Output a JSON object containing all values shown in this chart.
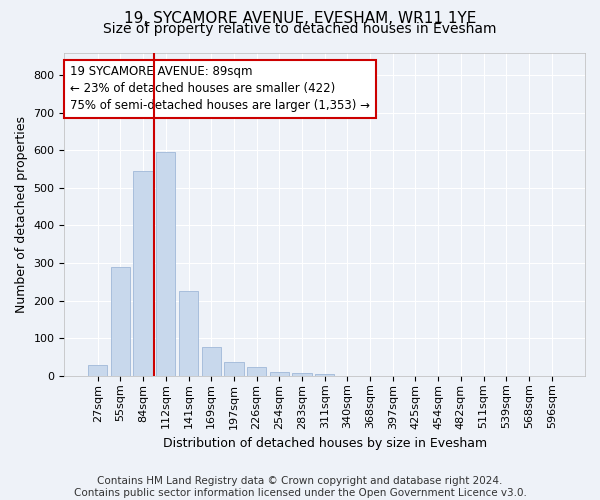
{
  "title_line1": "19, SYCAMORE AVENUE, EVESHAM, WR11 1YE",
  "title_line2": "Size of property relative to detached houses in Evesham",
  "xlabel": "Distribution of detached houses by size in Evesham",
  "ylabel": "Number of detached properties",
  "bar_color": "#c8d8ec",
  "bar_edge_color": "#a0b8d8",
  "categories": [
    "27sqm",
    "55sqm",
    "84sqm",
    "112sqm",
    "141sqm",
    "169sqm",
    "197sqm",
    "226sqm",
    "254sqm",
    "283sqm",
    "311sqm",
    "340sqm",
    "368sqm",
    "397sqm",
    "425sqm",
    "454sqm",
    "482sqm",
    "511sqm",
    "539sqm",
    "568sqm",
    "596sqm"
  ],
  "values": [
    28,
    290,
    545,
    595,
    225,
    78,
    38,
    23,
    10,
    8,
    5,
    0,
    0,
    0,
    0,
    0,
    0,
    0,
    0,
    0,
    0
  ],
  "ylim": [
    0,
    860
  ],
  "yticks": [
    0,
    100,
    200,
    300,
    400,
    500,
    600,
    700,
    800
  ],
  "vline_x": 2.5,
  "vline_color": "#cc0000",
  "ann_line1": "19 SYCAMORE AVENUE: 89sqm",
  "ann_line2": "← 23% of detached houses are smaller (422)",
  "ann_line3": "75% of semi-detached houses are larger (1,353) →",
  "footer_text": "Contains HM Land Registry data © Crown copyright and database right 2024.\nContains public sector information licensed under the Open Government Licence v3.0.",
  "bg_color": "#eef2f8",
  "grid_color": "#ffffff",
  "title_fontsize": 11,
  "subtitle_fontsize": 10,
  "axis_label_fontsize": 9,
  "tick_fontsize": 8,
  "annotation_fontsize": 8.5,
  "footer_fontsize": 7.5
}
